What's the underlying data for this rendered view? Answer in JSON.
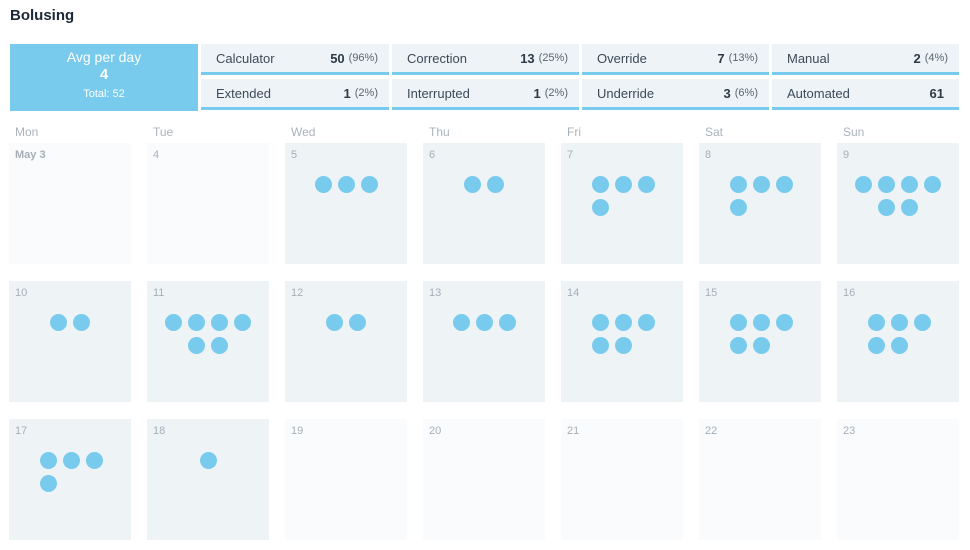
{
  "page": {
    "title": "Bolusing"
  },
  "summary": {
    "avg_label": "Avg per day",
    "avg_value": "4",
    "total": "Total: 52"
  },
  "stats": [
    {
      "label": "Calculator",
      "count": "50",
      "pct": "(96%)"
    },
    {
      "label": "Correction",
      "count": "13",
      "pct": "(25%)"
    },
    {
      "label": "Override",
      "count": "7",
      "pct": "(13%)"
    },
    {
      "label": "Manual",
      "count": "2",
      "pct": "(4%)"
    },
    {
      "label": "Extended",
      "count": "1",
      "pct": "(2%)"
    },
    {
      "label": "Interrupted",
      "count": "1",
      "pct": "(2%)"
    },
    {
      "label": "Underride",
      "count": "3",
      "pct": "(6%)"
    },
    {
      "label": "Automated",
      "count": "61",
      "pct": ""
    }
  ],
  "weekdays": [
    "Mon",
    "Tue",
    "Wed",
    "Thu",
    "Fri",
    "Sat",
    "Sun"
  ],
  "days": [
    {
      "label": "May 3",
      "boluses": 0
    },
    {
      "label": "4",
      "boluses": 0
    },
    {
      "label": "5",
      "boluses": 3
    },
    {
      "label": "6",
      "boluses": 2
    },
    {
      "label": "7",
      "boluses": 4
    },
    {
      "label": "8",
      "boluses": 4
    },
    {
      "label": "9",
      "boluses": 6
    },
    {
      "label": "10",
      "boluses": 2
    },
    {
      "label": "11",
      "boluses": 6
    },
    {
      "label": "12",
      "boluses": 2
    },
    {
      "label": "13",
      "boluses": 3
    },
    {
      "label": "14",
      "boluses": 5
    },
    {
      "label": "15",
      "boluses": 5
    },
    {
      "label": "16",
      "boluses": 5
    },
    {
      "label": "17",
      "boluses": 4
    },
    {
      "label": "18",
      "boluses": 1
    },
    {
      "label": "19",
      "boluses": 0
    },
    {
      "label": "20",
      "boluses": 0
    },
    {
      "label": "21",
      "boluses": 0
    },
    {
      "label": "22",
      "boluses": 0
    },
    {
      "label": "23",
      "boluses": 0
    }
  ],
  "colors": {
    "accent": "#79cbee",
    "tile": "#eef3f6",
    "tile_empty": "#f9fbfc"
  }
}
